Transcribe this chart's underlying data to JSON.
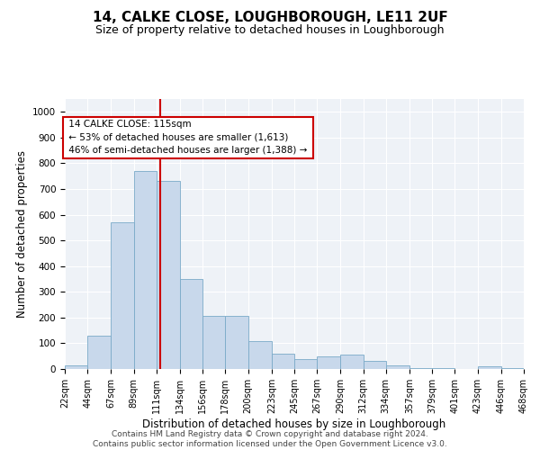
{
  "title": "14, CALKE CLOSE, LOUGHBOROUGH, LE11 2UF",
  "subtitle": "Size of property relative to detached houses in Loughborough",
  "xlabel": "Distribution of detached houses by size in Loughborough",
  "ylabel": "Number of detached properties",
  "footer_line1": "Contains HM Land Registry data © Crown copyright and database right 2024.",
  "footer_line2": "Contains public sector information licensed under the Open Government Licence v3.0.",
  "property_line": "14 CALKE CLOSE: 115sqm",
  "annotation_line1": "← 53% of detached houses are smaller (1,613)",
  "annotation_line2": "46% of semi-detached houses are larger (1,388) →",
  "property_sqm": 115,
  "bin_edges": [
    22,
    44,
    67,
    89,
    111,
    134,
    156,
    178,
    200,
    223,
    245,
    267,
    290,
    312,
    334,
    357,
    379,
    401,
    423,
    446,
    468
  ],
  "bar_heights": [
    15,
    130,
    570,
    770,
    730,
    350,
    205,
    205,
    110,
    60,
    40,
    50,
    55,
    30,
    15,
    5,
    3,
    0,
    10,
    2
  ],
  "bar_color": "#c8d8eb",
  "bar_edge_color": "#7aaac8",
  "vline_color": "#cc0000",
  "annotation_box_color": "#cc0000",
  "background_color": "#eef2f7",
  "ylim": [
    0,
    1050
  ],
  "yticks": [
    0,
    100,
    200,
    300,
    400,
    500,
    600,
    700,
    800,
    900,
    1000
  ],
  "grid_color": "#ffffff",
  "title_fontsize": 11,
  "subtitle_fontsize": 9,
  "tick_label_fontsize": 7,
  "axis_label_fontsize": 8.5,
  "footer_fontsize": 6.5
}
